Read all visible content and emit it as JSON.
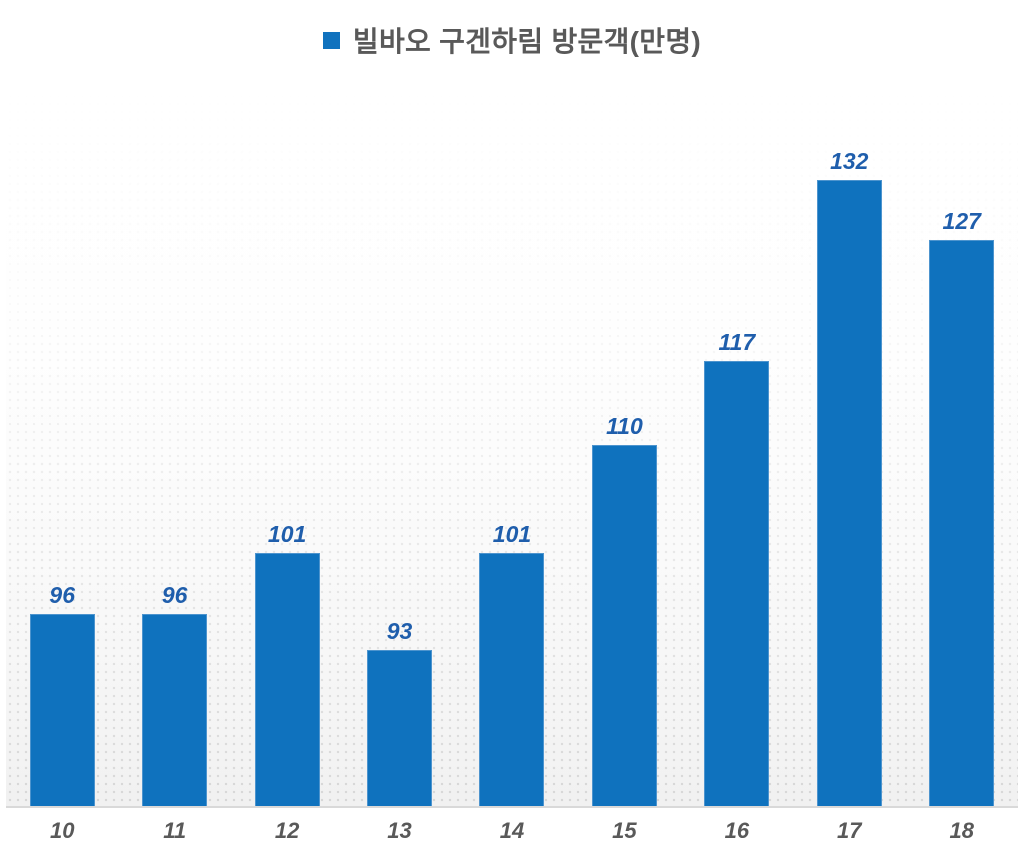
{
  "legend": {
    "marker_icon": "square",
    "marker_color": "#1072BE",
    "position": "top-center"
  },
  "chart_data": {
    "type": "bar",
    "title": "빌바오 구겐하림 방문객(만명)",
    "categories": [
      "10",
      "11",
      "12",
      "13",
      "14",
      "15",
      "16",
      "17",
      "18"
    ],
    "values": [
      96,
      96,
      101,
      93,
      101,
      110,
      117,
      132,
      127
    ],
    "series": [
      {
        "name": "빌바오 구겐하림 방문객(만명)",
        "values": [
          96,
          96,
          101,
          93,
          101,
          110,
          117,
          132,
          127
        ]
      }
    ],
    "xlabel": "",
    "ylabel": "",
    "ylim": [
      80,
      140
    ],
    "grid": false,
    "y_axis_visible": false,
    "legend_position": "top-center",
    "data_labels": true,
    "bar_color": "#0F72BE",
    "bar_border_color": "#4D94CE",
    "value_label_color": "#1F5EAC",
    "axis_label_color": "#595959",
    "title_color": "#595959",
    "baseline_color": "#d9d9d9",
    "plot_background_gradient": [
      "#ffffff",
      "#f1f1f1"
    ]
  }
}
